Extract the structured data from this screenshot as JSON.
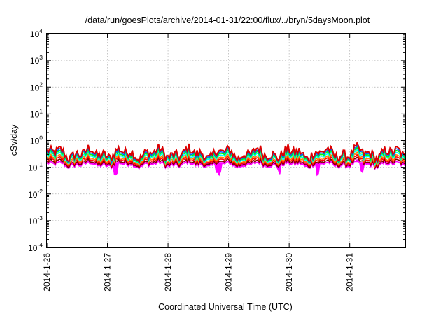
{
  "chart_data": {
    "type": "area",
    "title": "/data/run/goesPlots/archive/2014-01-31/22:00/flux/../bryn/5daysMoon.plot",
    "xlabel": "Coordinated Universal Time (UTC)",
    "ylabel": "cSv/day",
    "yscale": "log",
    "ylim": [
      0.0001,
      10000
    ],
    "xlim": [
      "2014-01-26",
      "2014-01-31T22:00"
    ],
    "y_ticks": [
      {
        "base": "10",
        "exp": "4",
        "value": 10000
      },
      {
        "base": "10",
        "exp": "3",
        "value": 1000
      },
      {
        "base": "10",
        "exp": "2",
        "value": 100
      },
      {
        "base": "10",
        "exp": "1",
        "value": 10
      },
      {
        "base": "10",
        "exp": "0",
        "value": 1
      },
      {
        "base": "10",
        "exp": "-1",
        "value": 0.1
      },
      {
        "base": "10",
        "exp": "-2",
        "value": 0.01
      },
      {
        "base": "10",
        "exp": "-3",
        "value": 0.001
      },
      {
        "base": "10",
        "exp": "-4",
        "value": 0.0001
      }
    ],
    "x_ticks": [
      "2014-1-26",
      "2014-1-27",
      "2014-1-28",
      "2014-1-29",
      "2014-1-30",
      "2014-1-31"
    ],
    "grid": true,
    "series": [
      {
        "color": "#ff00ff",
        "base_value": 0.125,
        "dip_value": 0.05
      },
      {
        "color": "#800000",
        "base_value": 0.145
      },
      {
        "color": "#ff0000",
        "base_value": 0.17
      },
      {
        "color": "#ff8000",
        "base_value": 0.195
      },
      {
        "color": "#00ffff",
        "base_value": 0.23
      },
      {
        "color": "#00ff00",
        "base_value": 0.26
      },
      {
        "color": "#0060ff",
        "base_value": 0.29
      },
      {
        "color": "#dd0000",
        "base_value": 0.33
      }
    ]
  }
}
